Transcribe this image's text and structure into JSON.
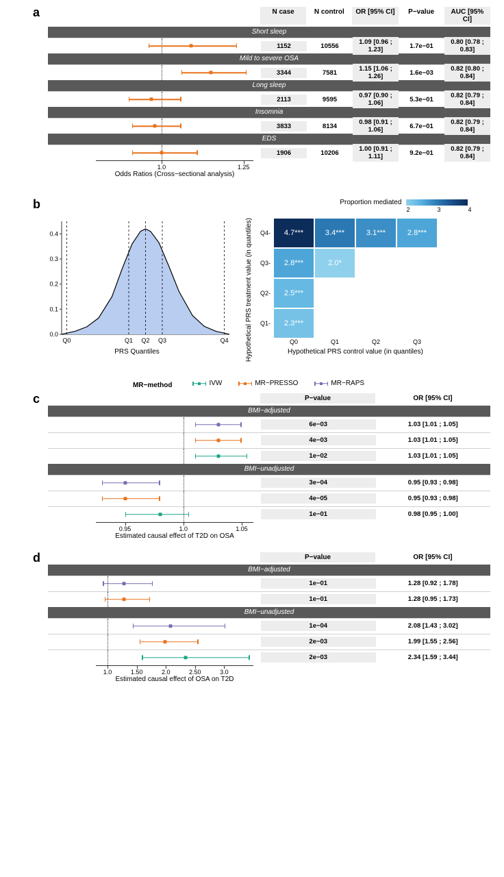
{
  "colors": {
    "orange": "#e9721c",
    "teal": "#1fa58a",
    "purple": "#7b6bb2",
    "band": "#595959",
    "shade": "#ededed",
    "densityFill": "#b9cdf0",
    "densityStroke": "#000000",
    "gridLine": "#d0d0d0",
    "heatGradient": [
      "#8fd1ec",
      "#56b0e0",
      "#2c7bb6",
      "#1b4f8a",
      "#0c2c5a"
    ]
  },
  "panelA": {
    "label": "a",
    "headers": [
      "N case",
      "N control",
      "OR [95% CI]",
      "P−value",
      "AUC [95% CI]"
    ],
    "xaxis": {
      "min": 0.8,
      "max": 1.28,
      "refline": 1.0,
      "ticks": [
        1.0,
        1.25
      ],
      "title": "Odds Ratios (Cross−sectional analysis)"
    },
    "groups": [
      {
        "name": "Short sleep",
        "rows": [
          {
            "or": 1.09,
            "lo": 0.96,
            "hi": 1.23,
            "cells": [
              "1152",
              "10556",
              "1.09 [0.96 ; 1.23]",
              "1.7e−01",
              "0.80 [0.78 ; 0.83]"
            ]
          }
        ]
      },
      {
        "name": "Mild to severe OSA",
        "rows": [
          {
            "or": 1.15,
            "lo": 1.06,
            "hi": 1.26,
            "cells": [
              "3344",
              "7581",
              "1.15 [1.06 ; 1.26]",
              "1.6e−03",
              "0.82 [0.80 ; 0.84]"
            ]
          }
        ]
      },
      {
        "name": "Long sleep",
        "rows": [
          {
            "or": 0.97,
            "lo": 0.9,
            "hi": 1.06,
            "cells": [
              "2113",
              "9595",
              "0.97 [0.90 ; 1.06]",
              "5.3e−01",
              "0.82 [0.79 ; 0.84]"
            ]
          }
        ]
      },
      {
        "name": "Insomnia",
        "rows": [
          {
            "or": 0.98,
            "lo": 0.91,
            "hi": 1.06,
            "cells": [
              "3833",
              "8134",
              "0.98 [0.91 ; 1.06]",
              "6.7e−01",
              "0.82 [0.79 ; 0.84]"
            ]
          }
        ]
      },
      {
        "name": "EDS",
        "rows": [
          {
            "or": 1.0,
            "lo": 0.91,
            "hi": 1.11,
            "cells": [
              "1906",
              "10206",
              "1.00 [0.91 ; 1.11]",
              "9.2e−01",
              "0.82 [0.79 ; 0.84]"
            ]
          }
        ]
      }
    ]
  },
  "panelB": {
    "label": "b",
    "density": {
      "xlabel": "PRS Quantiles",
      "yTicks": [
        0.0,
        0.1,
        0.2,
        0.3,
        0.4
      ],
      "quantiles": [
        "Q0",
        "Q1",
        "Q2",
        "Q3",
        "Q4"
      ],
      "quantilePos": [
        0.03,
        0.4,
        0.5,
        0.6,
        0.97
      ],
      "points": [
        [
          0.0,
          0.0
        ],
        [
          0.03,
          0.005
        ],
        [
          0.08,
          0.012
        ],
        [
          0.15,
          0.03
        ],
        [
          0.22,
          0.065
        ],
        [
          0.3,
          0.15
        ],
        [
          0.36,
          0.26
        ],
        [
          0.42,
          0.36
        ],
        [
          0.47,
          0.41
        ],
        [
          0.5,
          0.42
        ],
        [
          0.53,
          0.41
        ],
        [
          0.58,
          0.365
        ],
        [
          0.64,
          0.27
        ],
        [
          0.7,
          0.17
        ],
        [
          0.78,
          0.075
        ],
        [
          0.85,
          0.032
        ],
        [
          0.92,
          0.012
        ],
        [
          0.97,
          0.005
        ],
        [
          1.0,
          0.0
        ]
      ]
    },
    "heat": {
      "title": "Proportion mediated",
      "colorbarTicks": [
        "2",
        "3",
        "4"
      ],
      "xlab": "Hypothetical PRS control value (in quantiles)",
      "ylab": "Hypothetical PRS treatment value (in quantiles)",
      "xcats": [
        "Q0",
        "Q1",
        "Q2",
        "Q3"
      ],
      "ycats": [
        "Q1",
        "Q2",
        "Q3",
        "Q4"
      ],
      "cells": [
        {
          "r": 3,
          "c": 0,
          "txt": "4.7***",
          "v": 4.7
        },
        {
          "r": 3,
          "c": 1,
          "txt": "3.4***",
          "v": 3.4
        },
        {
          "r": 3,
          "c": 2,
          "txt": "3.1***",
          "v": 3.1
        },
        {
          "r": 3,
          "c": 3,
          "txt": "2.8***",
          "v": 2.8
        },
        {
          "r": 2,
          "c": 0,
          "txt": "2.8***",
          "v": 2.8
        },
        {
          "r": 2,
          "c": 1,
          "txt": "2.0*",
          "v": 2.0
        },
        {
          "r": 1,
          "c": 0,
          "txt": "2.5***",
          "v": 2.5
        },
        {
          "r": 0,
          "c": 0,
          "txt": "2.3***",
          "v": 2.3
        }
      ]
    }
  },
  "legendMR": {
    "title": "MR−method",
    "items": [
      {
        "label": "IVW",
        "color": "#1fa58a"
      },
      {
        "label": "MR−PRESSO",
        "color": "#e9721c"
      },
      {
        "label": "MR−RAPS",
        "color": "#7b6bb2"
      }
    ]
  },
  "panelC": {
    "label": "c",
    "headers": [
      "P−value",
      "OR [95% CI]"
    ],
    "xaxis": {
      "min": 0.925,
      "max": 1.06,
      "refline": 1.0,
      "ticks": [
        0.95,
        1.0,
        1.05
      ],
      "title": "Estimated causal effect of T2D on OSA"
    },
    "groups": [
      {
        "name": "BMI−adjusted",
        "rows": [
          {
            "method": "MR−RAPS",
            "color": "#7b6bb2",
            "or": 1.03,
            "lo": 1.01,
            "hi": 1.05,
            "cells": [
              "6e−03",
              "1.03 [1.01 ; 1.05]"
            ]
          },
          {
            "method": "MR−PRESSO",
            "color": "#e9721c",
            "or": 1.03,
            "lo": 1.01,
            "hi": 1.05,
            "cells": [
              "4e−03",
              "1.03 [1.01 ; 1.05]"
            ]
          },
          {
            "method": "IVW",
            "color": "#1fa58a",
            "or": 1.03,
            "lo": 1.01,
            "hi": 1.055,
            "cells": [
              "1e−02",
              "1.03 [1.01 ; 1.05]"
            ]
          }
        ]
      },
      {
        "name": "BMI−unadjusted",
        "rows": [
          {
            "method": "MR−RAPS",
            "color": "#7b6bb2",
            "or": 0.95,
            "lo": 0.93,
            "hi": 0.98,
            "cells": [
              "3e−04",
              "0.95 [0.93 ; 0.98]"
            ]
          },
          {
            "method": "MR−PRESSO",
            "color": "#e9721c",
            "or": 0.95,
            "lo": 0.93,
            "hi": 0.98,
            "cells": [
              "4e−05",
              "0.95 [0.93 ; 0.98]"
            ]
          },
          {
            "method": "IVW",
            "color": "#1fa58a",
            "or": 0.98,
            "lo": 0.95,
            "hi": 1.005,
            "cells": [
              "1e−01",
              "0.98 [0.95 ; 1.00]"
            ]
          }
        ]
      }
    ]
  },
  "panelD": {
    "label": "d",
    "headers": [
      "P−value",
      "OR [95% CI]"
    ],
    "xaxis": {
      "min": 0.8,
      "max": 3.5,
      "refline": 1.0,
      "ticks": [
        1.0,
        1.5,
        2.0,
        2.5,
        3.0
      ],
      "title": "Estimated causal effect of OSA on T2D"
    },
    "groups": [
      {
        "name": "BMI−adjusted",
        "rows": [
          {
            "method": "MR−RAPS",
            "color": "#7b6bb2",
            "or": 1.28,
            "lo": 0.92,
            "hi": 1.78,
            "cells": [
              "1e−01",
              "1.28 [0.92 ; 1.78]"
            ]
          },
          {
            "method": "MR−PRESSO",
            "color": "#e9721c",
            "or": 1.28,
            "lo": 0.95,
            "hi": 1.73,
            "cells": [
              "1e−01",
              "1.28 [0.95 ; 1.73]"
            ]
          }
        ]
      },
      {
        "name": "BMI−unadjusted",
        "rows": [
          {
            "method": "MR−RAPS",
            "color": "#7b6bb2",
            "or": 2.08,
            "lo": 1.43,
            "hi": 3.02,
            "cells": [
              "1e−04",
              "2.08 [1.43 ; 3.02]"
            ]
          },
          {
            "method": "MR−PRESSO",
            "color": "#e9721c",
            "or": 1.99,
            "lo": 1.55,
            "hi": 2.56,
            "cells": [
              "2e−03",
              "1.99 [1.55 ; 2.56]"
            ]
          },
          {
            "method": "IVW",
            "color": "#1fa58a",
            "or": 2.34,
            "lo": 1.59,
            "hi": 3.44,
            "cells": [
              "2e−03",
              "2.34 [1.59 ; 3.44]"
            ]
          }
        ]
      }
    ]
  }
}
